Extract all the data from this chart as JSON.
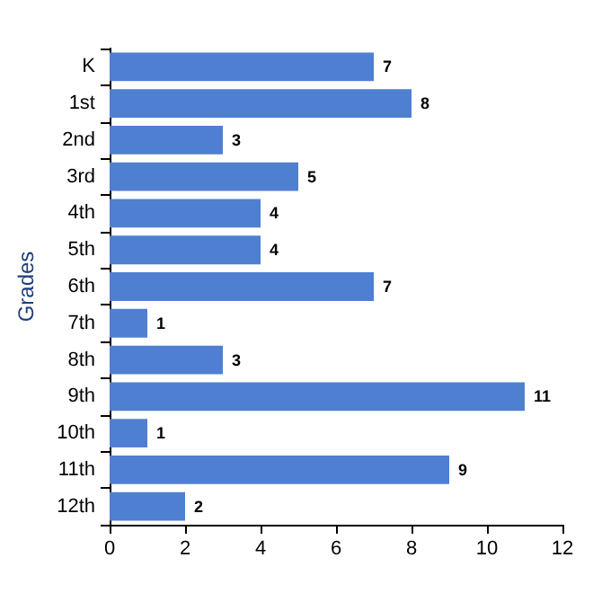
{
  "chart_data": {
    "type": "bar",
    "orientation": "horizontal",
    "ylabel": "Grades",
    "categories": [
      "K",
      "1st",
      "2nd",
      "3rd",
      "4th",
      "5th",
      "6th",
      "7th",
      "8th",
      "9th",
      "10th",
      "11th",
      "12th"
    ],
    "values": [
      7,
      8,
      3,
      5,
      4,
      4,
      7,
      1,
      3,
      11,
      1,
      9,
      2
    ],
    "color": "#4f7fd0",
    "xlim": [
      0,
      12
    ],
    "xticks": [
      0,
      2,
      4,
      6,
      8,
      10,
      12
    ],
    "data_labels": true,
    "grid": false
  }
}
